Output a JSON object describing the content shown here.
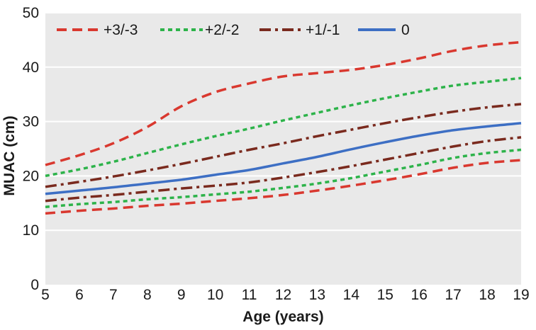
{
  "chart_data": {
    "type": "line",
    "title": "",
    "xlabel": "Age (years)",
    "ylabel": "MUAC (cm)",
    "xlim": [
      5,
      19
    ],
    "ylim": [
      0,
      50
    ],
    "x_ticks": [
      5,
      6,
      7,
      8,
      9,
      10,
      11,
      12,
      13,
      14,
      15,
      16,
      17,
      18,
      19
    ],
    "y_ticks": [
      0,
      10,
      20,
      30,
      40,
      50
    ],
    "grid": "horizontal",
    "legend_position": "top-left",
    "x": [
      5,
      6,
      7,
      8,
      9,
      10,
      11,
      12,
      13,
      14,
      15,
      16,
      17,
      18,
      19
    ],
    "series": [
      {
        "name": "+3",
        "legend": "+3/-3",
        "color": "#d9382f",
        "dash": "dashed",
        "width": 3.5,
        "values": [
          22.0,
          23.8,
          26.0,
          29.0,
          32.8,
          35.4,
          37.0,
          38.3,
          38.9,
          39.5,
          40.4,
          41.6,
          43.0,
          44.0,
          44.6
        ]
      },
      {
        "name": "+2",
        "legend": "+2/-2",
        "color": "#2db34a",
        "dash": "dotted",
        "width": 3.5,
        "values": [
          20.0,
          21.2,
          22.6,
          24.2,
          25.8,
          27.3,
          28.7,
          30.2,
          31.6,
          33.0,
          34.3,
          35.5,
          36.6,
          37.3,
          38.0
        ]
      },
      {
        "name": "+1",
        "legend": "+1/-1",
        "color": "#7a2a1e",
        "dash": "dashdot",
        "width": 3.5,
        "values": [
          18.0,
          18.9,
          19.9,
          21.0,
          22.2,
          23.5,
          24.8,
          26.0,
          27.3,
          28.5,
          29.7,
          30.8,
          31.8,
          32.6,
          33.2
        ]
      },
      {
        "name": "0",
        "legend": "0",
        "color": "#3d6fc4",
        "dash": "solid",
        "width": 3.5,
        "values": [
          16.7,
          17.3,
          17.9,
          18.6,
          19.3,
          20.2,
          21.1,
          22.3,
          23.5,
          24.9,
          26.2,
          27.4,
          28.4,
          29.1,
          29.7
        ]
      },
      {
        "name": "-1",
        "legend": "",
        "color": "#7a2a1e",
        "dash": "dashdot",
        "width": 3.5,
        "values": [
          15.4,
          16.0,
          16.5,
          17.1,
          17.7,
          18.2,
          18.8,
          19.7,
          20.7,
          21.8,
          23.0,
          24.2,
          25.4,
          26.4,
          27.1
        ]
      },
      {
        "name": "-2",
        "legend": "",
        "color": "#2db34a",
        "dash": "dotted",
        "width": 3.5,
        "values": [
          14.3,
          14.8,
          15.2,
          15.7,
          16.1,
          16.6,
          17.1,
          17.8,
          18.6,
          19.6,
          20.8,
          22.0,
          23.3,
          24.2,
          24.8
        ]
      },
      {
        "name": "-3",
        "legend": "",
        "color": "#d9382f",
        "dash": "dashed",
        "width": 3.5,
        "values": [
          13.1,
          13.6,
          14.0,
          14.5,
          14.9,
          15.4,
          15.9,
          16.5,
          17.3,
          18.2,
          19.2,
          20.3,
          21.5,
          22.4,
          22.9
        ]
      }
    ],
    "legend": [
      "+3/-3",
      "+2/-2",
      "+1/-1",
      "0"
    ],
    "colors": {
      "plot_background": "#e9e9e9",
      "gridline": "#ffffff",
      "text": "#1a1a1a"
    }
  }
}
